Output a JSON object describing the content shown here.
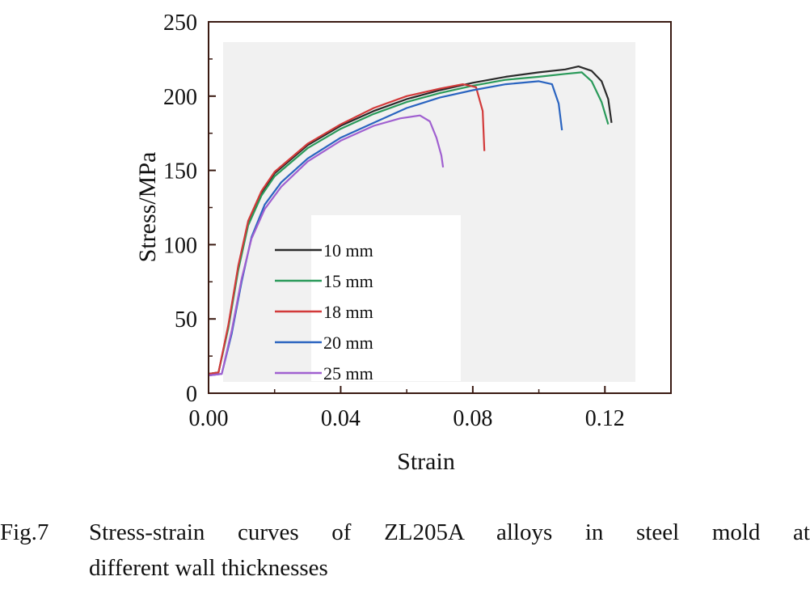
{
  "chart_data": {
    "type": "line",
    "xlabel": "Strain",
    "ylabel": "Stress/MPa",
    "xlim": [
      0,
      0.14
    ],
    "ylim": [
      0,
      250
    ],
    "x_ticks": [
      "0.00",
      "0.04",
      "0.08",
      "0.12"
    ],
    "x_tick_values": [
      0,
      0.04,
      0.08,
      0.12
    ],
    "y_ticks": [
      "0",
      "50",
      "100",
      "150",
      "200",
      "250"
    ],
    "y_tick_values": [
      0,
      50,
      100,
      150,
      200,
      250
    ],
    "grid": false,
    "legend_position": "lower-center",
    "series": [
      {
        "name": "10 mm",
        "color": "#2b2b2b",
        "points": [
          [
            0,
            13
          ],
          [
            0.003,
            14
          ],
          [
            0.006,
            45
          ],
          [
            0.009,
            85
          ],
          [
            0.012,
            115
          ],
          [
            0.016,
            135
          ],
          [
            0.02,
            148
          ],
          [
            0.03,
            167
          ],
          [
            0.04,
            180
          ],
          [
            0.05,
            190
          ],
          [
            0.06,
            198
          ],
          [
            0.07,
            204
          ],
          [
            0.08,
            209
          ],
          [
            0.09,
            213
          ],
          [
            0.1,
            216
          ],
          [
            0.108,
            218
          ],
          [
            0.112,
            220
          ],
          [
            0.116,
            217
          ],
          [
            0.119,
            210
          ],
          [
            0.121,
            198
          ],
          [
            0.122,
            182
          ]
        ]
      },
      {
        "name": "15 mm",
        "color": "#2a9a5a",
        "points": [
          [
            0,
            13
          ],
          [
            0.003,
            14
          ],
          [
            0.006,
            44
          ],
          [
            0.009,
            83
          ],
          [
            0.012,
            113
          ],
          [
            0.016,
            133
          ],
          [
            0.02,
            146
          ],
          [
            0.03,
            165
          ],
          [
            0.04,
            178
          ],
          [
            0.05,
            188
          ],
          [
            0.06,
            196
          ],
          [
            0.07,
            202
          ],
          [
            0.08,
            207
          ],
          [
            0.09,
            211
          ],
          [
            0.1,
            213
          ],
          [
            0.108,
            215
          ],
          [
            0.113,
            216
          ],
          [
            0.116,
            210
          ],
          [
            0.119,
            196
          ],
          [
            0.121,
            181
          ]
        ]
      },
      {
        "name": "18 mm",
        "color": "#d23a3a",
        "points": [
          [
            0,
            13
          ],
          [
            0.003,
            14
          ],
          [
            0.006,
            46
          ],
          [
            0.009,
            86
          ],
          [
            0.012,
            116
          ],
          [
            0.016,
            136
          ],
          [
            0.02,
            149
          ],
          [
            0.03,
            168
          ],
          [
            0.04,
            181
          ],
          [
            0.05,
            192
          ],
          [
            0.06,
            200
          ],
          [
            0.07,
            205
          ],
          [
            0.077,
            208
          ],
          [
            0.081,
            206
          ],
          [
            0.083,
            190
          ],
          [
            0.0835,
            163
          ]
        ]
      },
      {
        "name": "20 mm",
        "color": "#2a64c0",
        "points": [
          [
            0,
            12
          ],
          [
            0.004,
            13
          ],
          [
            0.007,
            40
          ],
          [
            0.01,
            75
          ],
          [
            0.013,
            105
          ],
          [
            0.017,
            127
          ],
          [
            0.022,
            142
          ],
          [
            0.03,
            158
          ],
          [
            0.04,
            172
          ],
          [
            0.05,
            182
          ],
          [
            0.06,
            192
          ],
          [
            0.07,
            199
          ],
          [
            0.08,
            204
          ],
          [
            0.09,
            208
          ],
          [
            0.1,
            210
          ],
          [
            0.104,
            208
          ],
          [
            0.106,
            195
          ],
          [
            0.107,
            177
          ]
        ]
      },
      {
        "name": "25 mm",
        "color": "#a060d0",
        "points": [
          [
            0,
            12
          ],
          [
            0.004,
            13
          ],
          [
            0.007,
            42
          ],
          [
            0.01,
            77
          ],
          [
            0.013,
            104
          ],
          [
            0.017,
            124
          ],
          [
            0.022,
            139
          ],
          [
            0.03,
            156
          ],
          [
            0.04,
            170
          ],
          [
            0.05,
            180
          ],
          [
            0.058,
            185
          ],
          [
            0.064,
            187
          ],
          [
            0.067,
            183
          ],
          [
            0.069,
            172
          ],
          [
            0.0705,
            160
          ],
          [
            0.071,
            152
          ]
        ]
      }
    ]
  },
  "caption": {
    "label": "Fig.7",
    "line1": "Stress-strain curves of ZL205A alloys in steel mold at",
    "line2": "different wall thicknesses"
  }
}
